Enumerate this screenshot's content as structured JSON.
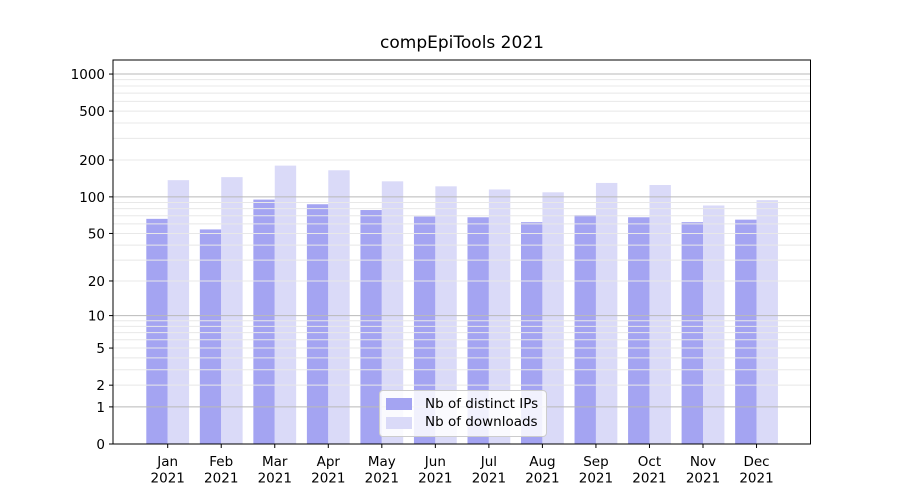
{
  "chart_data": {
    "type": "bar",
    "title": "compEpiTools 2021",
    "categories": [
      "Jan",
      "Feb",
      "Mar",
      "Apr",
      "May",
      "Jun",
      "Jul",
      "Aug",
      "Sep",
      "Oct",
      "Nov",
      "Dec"
    ],
    "x_year_label": "2021",
    "series": [
      {
        "name": "Nb of distinct IPs",
        "color": "#a4a4f2",
        "values": [
          66,
          54,
          95,
          87,
          78,
          69,
          68,
          62,
          71,
          68,
          62,
          65
        ]
      },
      {
        "name": "Nb of downloads",
        "color": "#dadaf8",
        "values": [
          137,
          145,
          180,
          165,
          134,
          122,
          115,
          109,
          130,
          125,
          85,
          94
        ]
      }
    ],
    "yscale": "log1p",
    "ylim": [
      0,
      1280
    ],
    "ytick_labels": [
      "1000",
      "500",
      "200",
      "100",
      "50",
      "20",
      "10",
      "5",
      "2",
      "1",
      "0"
    ],
    "yticks": [
      1000,
      500,
      200,
      100,
      50,
      20,
      10,
      5,
      2,
      1,
      0
    ],
    "grid": {
      "major_values": [
        1,
        10,
        100,
        1000
      ],
      "minor_values": [
        2,
        3,
        4,
        5,
        6,
        7,
        8,
        9,
        20,
        30,
        40,
        50,
        60,
        70,
        80,
        90,
        200,
        300,
        400,
        500,
        600,
        700,
        800,
        900
      ],
      "major_color": "#b9b9b9",
      "minor_color": "#e8e8e8",
      "grid_on_top_of_bars": true
    },
    "legend": {
      "position": "lower center"
    },
    "axis_color": "#000000",
    "tick_label_color": "#000000",
    "background": "#ffffff"
  }
}
